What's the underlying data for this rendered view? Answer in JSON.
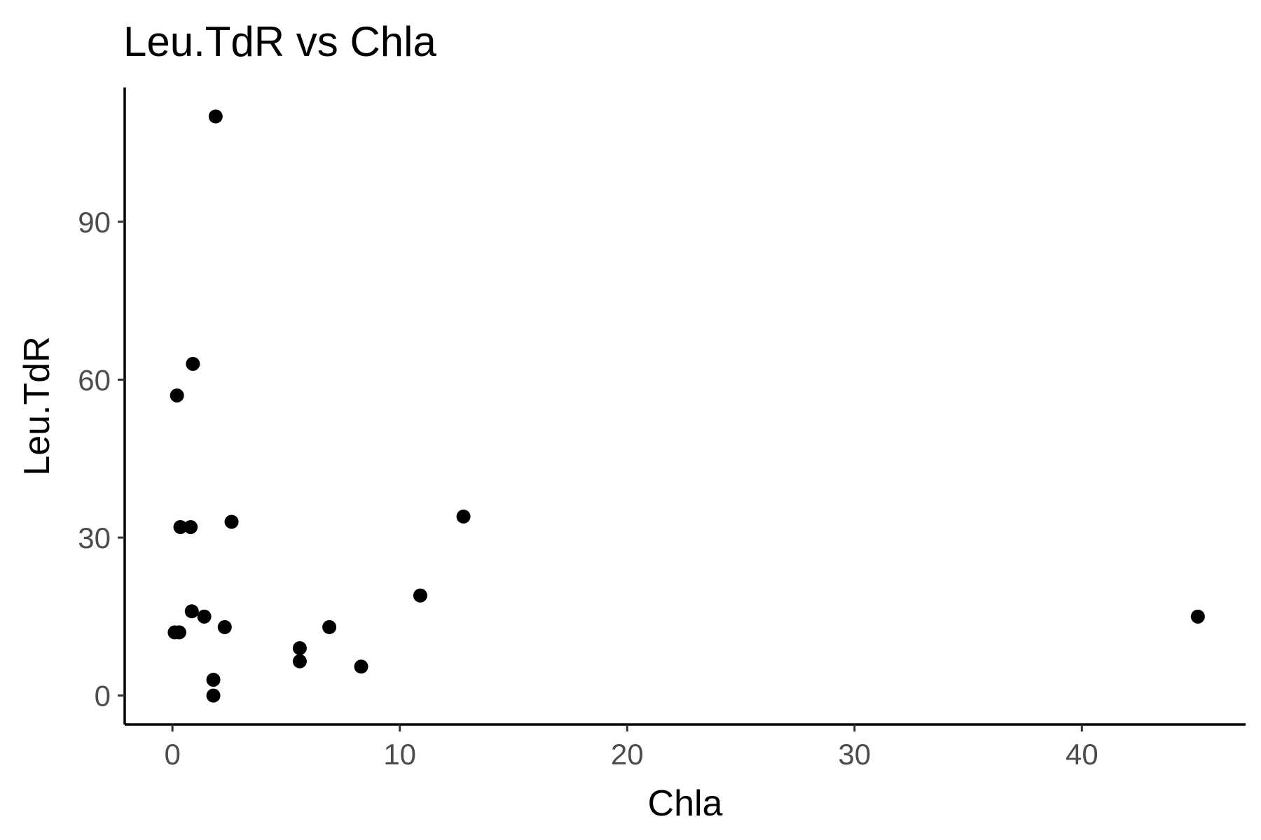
{
  "chart_data": {
    "type": "scatter",
    "title": "Leu.TdR vs Chla",
    "xlabel": "Chla",
    "ylabel": "Leu.TdR",
    "xlim": [
      -2.1,
      47.2
    ],
    "ylim": [
      -5.5,
      115.5
    ],
    "xticks": [
      0,
      10,
      20,
      30,
      40
    ],
    "yticks": [
      0,
      30,
      60,
      90
    ],
    "xtick_labels": [
      "0",
      "10",
      "20",
      "30",
      "40"
    ],
    "ytick_labels": [
      "0",
      "30",
      "60",
      "90"
    ],
    "grid": false,
    "legend": "none",
    "point_color": "#000000",
    "points": [
      {
        "x": 1.9,
        "y": 110
      },
      {
        "x": 0.9,
        "y": 63
      },
      {
        "x": 0.2,
        "y": 57
      },
      {
        "x": 0.35,
        "y": 32
      },
      {
        "x": 0.8,
        "y": 32
      },
      {
        "x": 2.6,
        "y": 33
      },
      {
        "x": 12.8,
        "y": 34
      },
      {
        "x": 10.9,
        "y": 19
      },
      {
        "x": 0.85,
        "y": 16
      },
      {
        "x": 1.4,
        "y": 15
      },
      {
        "x": 45.1,
        "y": 15
      },
      {
        "x": 2.3,
        "y": 13
      },
      {
        "x": 6.9,
        "y": 13
      },
      {
        "x": 0.1,
        "y": 12
      },
      {
        "x": 0.3,
        "y": 12
      },
      {
        "x": 5.6,
        "y": 9
      },
      {
        "x": 5.6,
        "y": 6.5
      },
      {
        "x": 8.3,
        "y": 5.5
      },
      {
        "x": 1.8,
        "y": 3
      },
      {
        "x": 1.8,
        "y": 0
      }
    ]
  }
}
